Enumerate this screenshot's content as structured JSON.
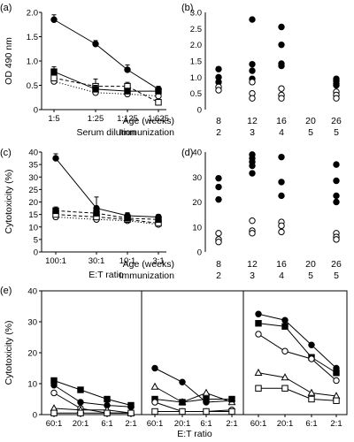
{
  "chart_data": [
    {
      "panel": "(a)",
      "type": "line",
      "ylabel": "OD 490 nm",
      "xlabel": "Serum dilution",
      "categories": [
        "1:5",
        "1:25",
        "1:125",
        "1:625"
      ],
      "ylim": [
        0,
        2
      ],
      "yticks": [
        "0",
        "0.5",
        "1.0",
        "1.5",
        "2.0"
      ],
      "series": [
        {
          "marker": "filled-circle",
          "line": "solid",
          "values": [
            1.85,
            1.35,
            0.82,
            0.42
          ],
          "errors": [
            0.1,
            0.07,
            0.1,
            0.06
          ]
        },
        {
          "marker": "filled-square",
          "line": "solid",
          "values": [
            0.78,
            0.42,
            0.38,
            0.38
          ],
          "errors": [
            0.1,
            0.08,
            0.06,
            0.05
          ]
        },
        {
          "marker": "open-square",
          "line": "dashed",
          "values": [
            0.65,
            0.48,
            0.48,
            0.15
          ],
          "errors": [
            0.1,
            0.15,
            0.08,
            0.06
          ]
        },
        {
          "marker": "open-circle",
          "line": "dotted",
          "values": [
            0.58,
            0.35,
            0.32,
            0.28
          ],
          "errors": [
            0.08,
            0.06,
            0.05,
            0.04
          ]
        }
      ]
    },
    {
      "panel": "(b)",
      "type": "scatter",
      "ylim": [
        0,
        3
      ],
      "yticks": [
        "0",
        "0.5",
        "1.0",
        "1.5",
        "2.0",
        "2.5",
        "3.0"
      ],
      "row_labels": [
        "Age (weeks)",
        "Immunization"
      ],
      "columns": [
        {
          "age": "8",
          "immunization": "2",
          "filled": [
            1.25,
            1.0,
            0.85
          ],
          "open": [
            0.7,
            0.6
          ]
        },
        {
          "age": "12",
          "immunization": "3",
          "filled": [
            2.78,
            1.4,
            1.2,
            0.95
          ],
          "open": [
            0.85,
            0.5,
            0.35
          ]
        },
        {
          "age": "16",
          "immunization": "4",
          "filled": [
            2.55,
            2.0,
            1.42,
            1.35
          ],
          "open": [
            0.65,
            0.45,
            0.35
          ]
        },
        {
          "age": "20",
          "immunization": "5",
          "filled": [],
          "open": []
        },
        {
          "age": "26",
          "immunization": "5",
          "filled": [
            0.95,
            0.88,
            0.8,
            0.75
          ],
          "open": [
            0.55,
            0.45,
            0.35
          ]
        }
      ]
    },
    {
      "panel": "(c)",
      "type": "line",
      "ylabel": "Cytotoxicity (%)",
      "xlabel": "E:T ratio",
      "categories": [
        "100:1",
        "30:1",
        "10:1",
        "3:1"
      ],
      "ylim": [
        0,
        40
      ],
      "yticks": [
        "0",
        "5",
        "10",
        "15",
        "20",
        "25",
        "30",
        "35",
        "40"
      ],
      "series": [
        {
          "marker": "filled-circle",
          "line": "solid",
          "values": [
            37.5,
            17.5,
            14.5,
            14.0
          ],
          "errors": [
            1.8,
            4.5,
            1.2,
            1.0
          ]
        },
        {
          "marker": "filled-square",
          "line": "dashed",
          "values": [
            16.5,
            15.5,
            13.5,
            13.0
          ],
          "errors": [
            1.5,
            1.2,
            1.0,
            1.0
          ]
        },
        {
          "marker": "open-square",
          "line": "dashed",
          "values": [
            15.0,
            14.0,
            13.0,
            11.5
          ],
          "errors": [
            1.5,
            1.2,
            1.0,
            1.0
          ]
        },
        {
          "marker": "open-circle",
          "line": "dotted",
          "values": [
            14.0,
            13.0,
            12.5,
            11.0
          ],
          "errors": [
            1.2,
            1.0,
            1.0,
            1.0
          ]
        }
      ]
    },
    {
      "panel": "(d)",
      "type": "scatter",
      "ylim": [
        0,
        40
      ],
      "yticks": [
        "0",
        "10",
        "20",
        "30",
        "40"
      ],
      "row_labels": [
        "Age (weeks)",
        "Immunization"
      ],
      "columns": [
        {
          "age": "8",
          "immunization": "2",
          "filled": [
            29.5,
            26.0,
            21.0
          ],
          "open": [
            7.5,
            5.0,
            4.0
          ]
        },
        {
          "age": "12",
          "immunization": "3",
          "filled": [
            39.0,
            37.5,
            36.0,
            34.5,
            31.5
          ],
          "open": [
            12.5,
            8.5,
            7.5
          ]
        },
        {
          "age": "16",
          "immunization": "4",
          "filled": [
            38.0,
            28.0,
            22.5
          ],
          "open": [
            12.0,
            10.5,
            8.0
          ]
        },
        {
          "age": "20",
          "immunization": "5",
          "filled": [],
          "open": []
        },
        {
          "age": "26",
          "immunization": "5",
          "filled": [
            35.0,
            28.5,
            22.5,
            20.0
          ],
          "open": [
            7.5,
            6.0,
            5.0
          ]
        }
      ]
    },
    {
      "panel": "(e)",
      "type": "line",
      "ylabel": "Cytotoxicity (%)",
      "xlabel": "E:T ratio",
      "categories": [
        "60:1",
        "20:1",
        "6:1",
        "2:1"
      ],
      "ylim": [
        0,
        40
      ],
      "yticks": [
        "0",
        "10",
        "20",
        "30",
        "40"
      ],
      "subplots": [
        {
          "series": [
            {
              "marker": "filled-square",
              "values": [
                11.0,
                8.0,
                5.0,
                3.0
              ]
            },
            {
              "marker": "filled-circle",
              "values": [
                9.5,
                4.0,
                3.0,
                2.5
              ]
            },
            {
              "marker": "open-circle",
              "values": [
                7.0,
                2.0,
                0.5,
                0.5
              ]
            },
            {
              "marker": "open-triangle",
              "values": [
                2.0,
                1.5,
                1.5,
                0.5
              ]
            },
            {
              "marker": "open-square",
              "values": [
                0.5,
                0.5,
                0.5,
                0.5
              ]
            }
          ]
        },
        {
          "series": [
            {
              "marker": "filled-circle",
              "values": [
                15.0,
                10.5,
                4.0,
                4.5
              ]
            },
            {
              "marker": "open-triangle",
              "values": [
                9.0,
                4.0,
                7.0,
                4.0
              ]
            },
            {
              "marker": "filled-square",
              "values": [
                5.0,
                4.0,
                5.0,
                5.0
              ]
            },
            {
              "marker": "open-circle",
              "values": [
                4.0,
                1.0,
                1.0,
                1.5
              ]
            },
            {
              "marker": "open-square",
              "values": [
                1.0,
                1.0,
                1.0,
                1.0
              ]
            }
          ]
        },
        {
          "series": [
            {
              "marker": "filled-circle",
              "values": [
                32.5,
                30.5,
                22.5,
                15.0
              ]
            },
            {
              "marker": "filled-square",
              "values": [
                29.5,
                28.5,
                18.5,
                13.5
              ]
            },
            {
              "marker": "open-circle",
              "values": [
                26.0,
                20.5,
                18.0,
                11.0
              ]
            },
            {
              "marker": "open-triangle",
              "values": [
                13.5,
                12.0,
                7.0,
                6.0
              ]
            },
            {
              "marker": "open-square",
              "values": [
                8.5,
                8.5,
                5.0,
                4.5
              ]
            }
          ]
        }
      ]
    }
  ]
}
